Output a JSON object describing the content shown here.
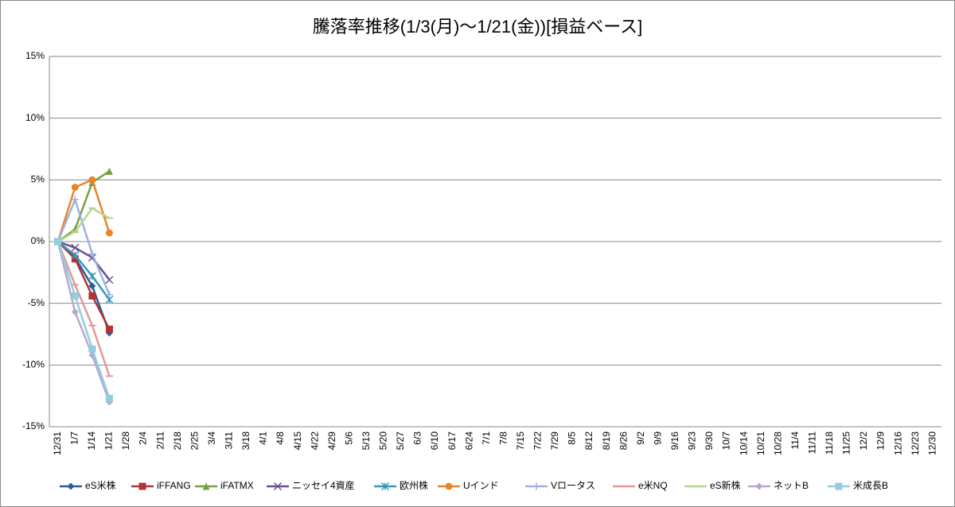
{
  "chart_data": {
    "type": "line",
    "title": "騰落率推移(1/3(月)～1/21(金))[損益ベース]",
    "categories": [
      "12/31",
      "1/7",
      "1/14",
      "1/21",
      "1/28",
      "2/4",
      "2/11",
      "2/18",
      "2/25",
      "3/4",
      "3/11",
      "3/18",
      "4/1",
      "4/8",
      "4/15",
      "4/22",
      "4/29",
      "5/6",
      "5/13",
      "5/20",
      "5/27",
      "6/3",
      "6/10",
      "6/17",
      "6/24",
      "7/1",
      "7/8",
      "7/15",
      "7/22",
      "7/29",
      "8/5",
      "8/12",
      "8/19",
      "8/26",
      "9/2",
      "9/9",
      "9/16",
      "9/23",
      "9/30",
      "10/7",
      "10/14",
      "10/21",
      "10/28",
      "11/4",
      "11/11",
      "11/18",
      "11/25",
      "12/2",
      "12/9",
      "12/16",
      "12/23",
      "12/30"
    ],
    "ylim": [
      -15,
      15
    ],
    "yticks": [
      {
        "value": -15,
        "label": "-15%"
      },
      {
        "value": -10,
        "label": "-10%"
      },
      {
        "value": -5,
        "label": "-5%"
      },
      {
        "value": 0,
        "label": "0%"
      },
      {
        "value": 5,
        "label": "5%"
      },
      {
        "value": 10,
        "label": "10%"
      },
      {
        "value": 15,
        "label": "15%"
      }
    ],
    "grid": true,
    "legend": "bottom",
    "series": [
      {
        "name": "eS米株",
        "color": "#2e5a9c",
        "marker": "diamond",
        "values": [
          0,
          -1.3,
          -3.6,
          -7.4,
          null,
          null,
          null,
          null,
          null,
          null,
          null,
          null,
          null,
          null,
          null,
          null,
          null,
          null,
          null,
          null,
          null,
          null,
          null,
          null,
          null,
          null,
          null,
          null,
          null,
          null,
          null,
          null,
          null,
          null,
          null,
          null,
          null,
          null,
          null,
          null,
          null,
          null,
          null,
          null,
          null,
          null,
          null,
          null,
          null,
          null,
          null,
          null
        ]
      },
      {
        "name": "iFFANG",
        "color": "#b23333",
        "marker": "square",
        "values": [
          0,
          -1.4,
          -4.4,
          -7.1,
          null,
          null,
          null,
          null,
          null,
          null,
          null,
          null,
          null,
          null,
          null,
          null,
          null,
          null,
          null,
          null,
          null,
          null,
          null,
          null,
          null,
          null,
          null,
          null,
          null,
          null,
          null,
          null,
          null,
          null,
          null,
          null,
          null,
          null,
          null,
          null,
          null,
          null,
          null,
          null,
          null,
          null,
          null,
          null,
          null,
          null,
          null,
          null
        ]
      },
      {
        "name": "iFATMX",
        "color": "#77a040",
        "marker": "triangle",
        "values": [
          0,
          1.0,
          4.8,
          5.7,
          null,
          null,
          null,
          null,
          null,
          null,
          null,
          null,
          null,
          null,
          null,
          null,
          null,
          null,
          null,
          null,
          null,
          null,
          null,
          null,
          null,
          null,
          null,
          null,
          null,
          null,
          null,
          null,
          null,
          null,
          null,
          null,
          null,
          null,
          null,
          null,
          null,
          null,
          null,
          null,
          null,
          null,
          null,
          null,
          null,
          null,
          null,
          null
        ]
      },
      {
        "name": "ニッセイ4資産",
        "color": "#6a4f96",
        "marker": "x",
        "values": [
          0,
          -0.5,
          -1.3,
          -3.1,
          null,
          null,
          null,
          null,
          null,
          null,
          null,
          null,
          null,
          null,
          null,
          null,
          null,
          null,
          null,
          null,
          null,
          null,
          null,
          null,
          null,
          null,
          null,
          null,
          null,
          null,
          null,
          null,
          null,
          null,
          null,
          null,
          null,
          null,
          null,
          null,
          null,
          null,
          null,
          null,
          null,
          null,
          null,
          null,
          null,
          null,
          null,
          null
        ]
      },
      {
        "name": "欧州株",
        "color": "#3399bb",
        "marker": "star",
        "values": [
          0,
          -1.1,
          -2.8,
          -4.7,
          null,
          null,
          null,
          null,
          null,
          null,
          null,
          null,
          null,
          null,
          null,
          null,
          null,
          null,
          null,
          null,
          null,
          null,
          null,
          null,
          null,
          null,
          null,
          null,
          null,
          null,
          null,
          null,
          null,
          null,
          null,
          null,
          null,
          null,
          null,
          null,
          null,
          null,
          null,
          null,
          null,
          null,
          null,
          null,
          null,
          null,
          null,
          null
        ]
      },
      {
        "name": "Uインド",
        "color": "#e8842c",
        "marker": "circle",
        "values": [
          0,
          4.4,
          5.0,
          0.7,
          null,
          null,
          null,
          null,
          null,
          null,
          null,
          null,
          null,
          null,
          null,
          null,
          null,
          null,
          null,
          null,
          null,
          null,
          null,
          null,
          null,
          null,
          null,
          null,
          null,
          null,
          null,
          null,
          null,
          null,
          null,
          null,
          null,
          null,
          null,
          null,
          null,
          null,
          null,
          null,
          null,
          null,
          null,
          null,
          null,
          null,
          null,
          null
        ]
      },
      {
        "name": "Vロータス",
        "color": "#9bb3df",
        "marker": "plus",
        "values": [
          0,
          3.4,
          -1.0,
          -4.3,
          null,
          null,
          null,
          null,
          null,
          null,
          null,
          null,
          null,
          null,
          null,
          null,
          null,
          null,
          null,
          null,
          null,
          null,
          null,
          null,
          null,
          null,
          null,
          null,
          null,
          null,
          null,
          null,
          null,
          null,
          null,
          null,
          null,
          null,
          null,
          null,
          null,
          null,
          null,
          null,
          null,
          null,
          null,
          null,
          null,
          null,
          null,
          null
        ]
      },
      {
        "name": "e米NQ",
        "color": "#e49999",
        "marker": "dash",
        "values": [
          0,
          -3.5,
          -6.8,
          -10.9,
          null,
          null,
          null,
          null,
          null,
          null,
          null,
          null,
          null,
          null,
          null,
          null,
          null,
          null,
          null,
          null,
          null,
          null,
          null,
          null,
          null,
          null,
          null,
          null,
          null,
          null,
          null,
          null,
          null,
          null,
          null,
          null,
          null,
          null,
          null,
          null,
          null,
          null,
          null,
          null,
          null,
          null,
          null,
          null,
          null,
          null,
          null,
          null
        ]
      },
      {
        "name": "eS新株",
        "color": "#b8d48e",
        "marker": "dash",
        "values": [
          0,
          0.8,
          2.7,
          1.9,
          null,
          null,
          null,
          null,
          null,
          null,
          null,
          null,
          null,
          null,
          null,
          null,
          null,
          null,
          null,
          null,
          null,
          null,
          null,
          null,
          null,
          null,
          null,
          null,
          null,
          null,
          null,
          null,
          null,
          null,
          null,
          null,
          null,
          null,
          null,
          null,
          null,
          null,
          null,
          null,
          null,
          null,
          null,
          null,
          null,
          null,
          null,
          null
        ]
      },
      {
        "name": "ネットB",
        "color": "#b9a6d0",
        "marker": "diamond",
        "values": [
          0,
          -5.7,
          -9.2,
          -13.0,
          null,
          null,
          null,
          null,
          null,
          null,
          null,
          null,
          null,
          null,
          null,
          null,
          null,
          null,
          null,
          null,
          null,
          null,
          null,
          null,
          null,
          null,
          null,
          null,
          null,
          null,
          null,
          null,
          null,
          null,
          null,
          null,
          null,
          null,
          null,
          null,
          null,
          null,
          null,
          null,
          null,
          null,
          null,
          null,
          null,
          null,
          null,
          null
        ]
      },
      {
        "name": "米成長B",
        "color": "#93cddd",
        "marker": "square",
        "values": [
          0,
          -4.4,
          -8.7,
          -12.7,
          null,
          null,
          null,
          null,
          null,
          null,
          null,
          null,
          null,
          null,
          null,
          null,
          null,
          null,
          null,
          null,
          null,
          null,
          null,
          null,
          null,
          null,
          null,
          null,
          null,
          null,
          null,
          null,
          null,
          null,
          null,
          null,
          null,
          null,
          null,
          null,
          null,
          null,
          null,
          null,
          null,
          null,
          null,
          null,
          null,
          null,
          null,
          null
        ]
      }
    ]
  }
}
